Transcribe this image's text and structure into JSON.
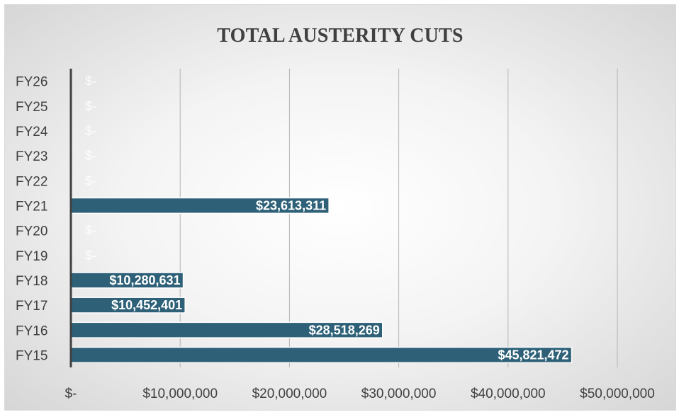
{
  "chart_data": {
    "type": "bar",
    "orientation": "horizontal",
    "title": "TOTAL AUSTERITY CUTS",
    "xlabel": "",
    "ylabel": "",
    "categories": [
      "FY15",
      "FY16",
      "FY17",
      "FY18",
      "FY19",
      "FY20",
      "FY21",
      "FY22",
      "FY23",
      "FY24",
      "FY25",
      "FY26"
    ],
    "values": [
      45821472,
      28518269,
      10452401,
      10280631,
      0,
      0,
      23613311,
      0,
      0,
      0,
      0,
      0
    ],
    "value_labels": [
      "$45,821,472",
      "$28,518,269",
      "$10,452,401",
      "$10,280,631",
      "$-",
      "$-",
      "$23,613,311",
      "$-",
      "$-",
      "$-",
      "$-",
      "$-"
    ],
    "xlim": [
      0,
      50000000
    ],
    "x_ticks": [
      0,
      10000000,
      20000000,
      30000000,
      40000000,
      50000000
    ],
    "x_tick_labels": [
      "$-",
      "$10,000,000",
      "$20,000,000",
      "$30,000,000",
      "$40,000,000",
      "$50,000,000"
    ],
    "grid": true,
    "legend": "none",
    "colors": {
      "bar": "#2e6178",
      "bar_border": "#ffffff",
      "gridline": "#b3b3b3",
      "axis": "#404040",
      "text": "#404040",
      "label_text": "#ffffff"
    }
  }
}
